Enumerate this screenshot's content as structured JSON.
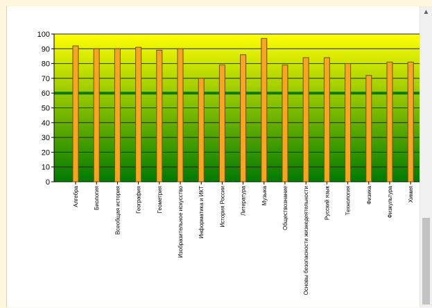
{
  "scrollbar": {
    "up_arrow_icon": "chevron-up-icon"
  },
  "chart_data": {
    "type": "bar",
    "title": "",
    "xlabel": "",
    "ylabel": "",
    "ylim": [
      0,
      100
    ],
    "yticks": [
      0,
      10,
      20,
      30,
      40,
      50,
      60,
      70,
      80,
      90,
      100
    ],
    "grid": true,
    "reference_line": 60,
    "categories": [
      "Алгебра",
      "Биология",
      "Всеобщая история",
      "География",
      "Геометрия",
      "Изобразительное искусство",
      "Информатика и ИКТ",
      "История России",
      "Литература",
      "Музыка",
      "Обществознание",
      "Основы безопасности жизнедеятельности",
      "Русский язык",
      "Технология",
      "Физика",
      "Физкультура",
      "Химия"
    ],
    "values": [
      92,
      90,
      90,
      91,
      89,
      90,
      70,
      79,
      86,
      97,
      79,
      84,
      84,
      80,
      72,
      81,
      81
    ],
    "colors": {
      "bar_fill": "#f5a623",
      "bar_stroke": "#7a4a00",
      "background_top": "#ffff00",
      "background_bottom": "#007a00",
      "reference_line": "#0b7a0b",
      "grid": "#1e2a10"
    }
  }
}
